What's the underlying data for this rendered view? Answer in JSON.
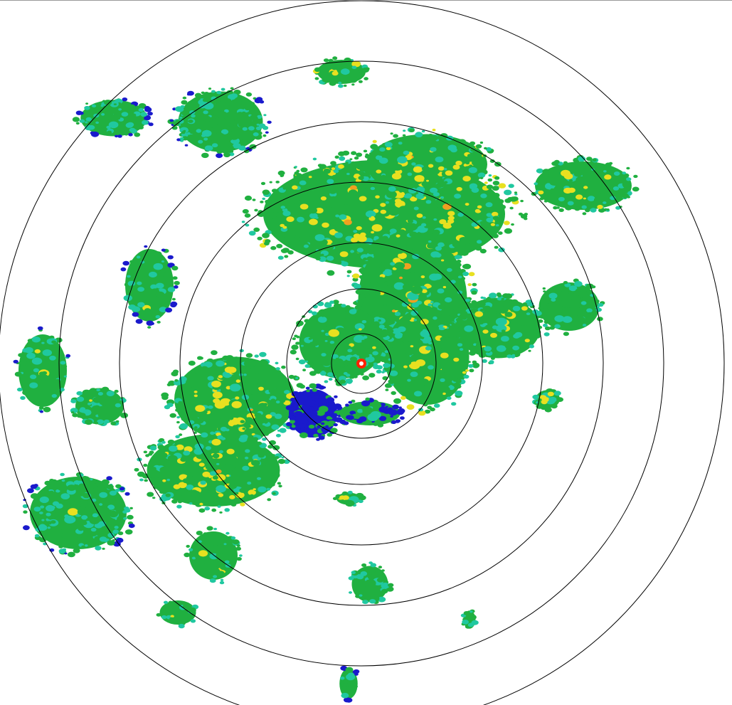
{
  "display": {
    "type": "radar-ppi",
    "range_rings": 7,
    "ring_color": "#000000",
    "background": "#ffffff"
  },
  "colors": {
    "light": "#1a1acc",
    "weak": "#20c8a0",
    "moderate": "#20b040",
    "heavy": "#e8e020",
    "strong": "#f0a020",
    "intense": "#e82020"
  }
}
